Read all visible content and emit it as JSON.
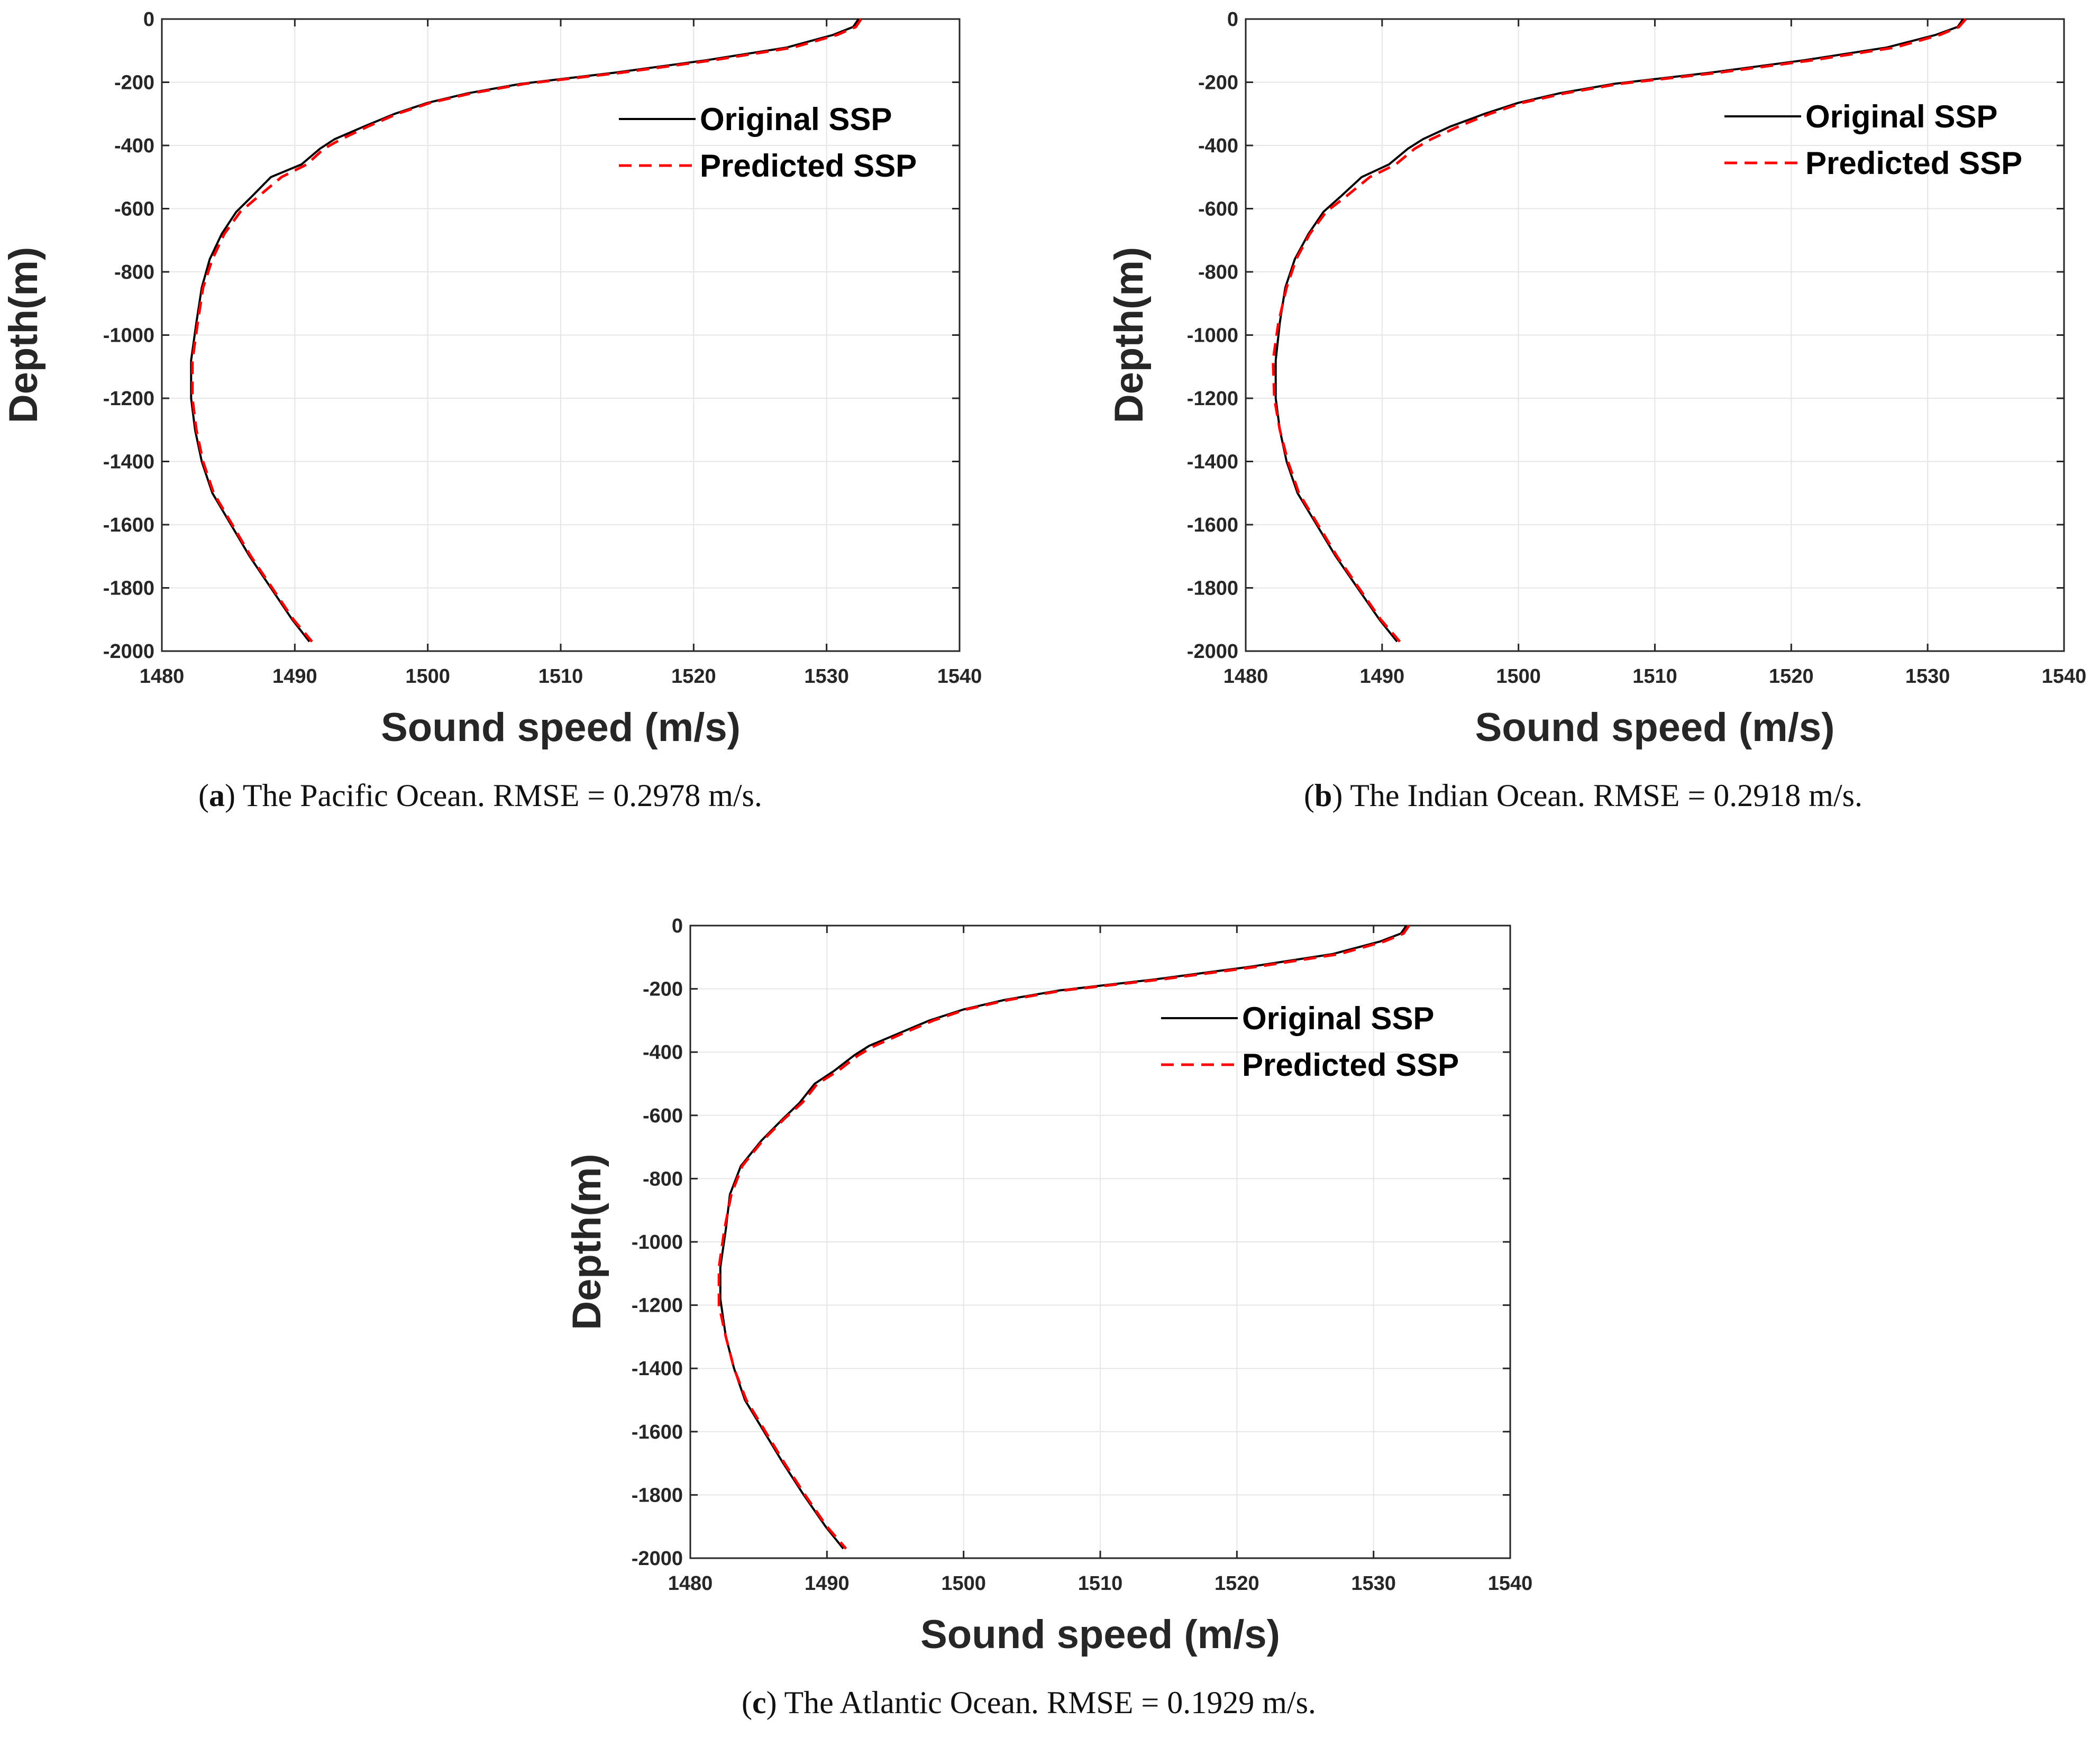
{
  "figure": {
    "captions": [
      {
        "letter": "a",
        "text": "The Pacific Ocean. RMSE = 0.2978 m/s."
      },
      {
        "letter": "b",
        "text": "The Indian Ocean. RMSE = 0.2918 m/s."
      },
      {
        "letter": "c",
        "text": "The Atlantic Ocean. RMSE = 0.1929 m/s."
      }
    ]
  },
  "colors": {
    "original": "#000000",
    "predicted": "#ff0000",
    "grid": "#e6e6e6",
    "axis": "#262626"
  },
  "chart_data": [
    {
      "type": "line",
      "xlabel": "Sound speed (m/s)",
      "ylabel": "Depth(m)",
      "xlim": [
        1480,
        1540
      ],
      "ylim": [
        -2000,
        0
      ],
      "xticks": [
        1480,
        1490,
        1500,
        1510,
        1520,
        1530,
        1540
      ],
      "yticks": [
        0,
        -200,
        -400,
        -600,
        -800,
        -1000,
        -1200,
        -1400,
        -1600,
        -1800,
        -2000
      ],
      "grid": true,
      "legend_position": "top-right",
      "series": [
        {
          "name": "Original SSP",
          "style": "solid",
          "x": [
            1532.4,
            1532.0,
            1530.5,
            1527.0,
            1521.0,
            1514.0,
            1507.0,
            1503.0,
            1500.0,
            1497.5,
            1495.2,
            1493.0,
            1491.9,
            1490.5,
            1488.2,
            1486.8,
            1485.6,
            1484.5,
            1483.6,
            1483.0,
            1482.6,
            1482.2,
            1482.2,
            1482.5,
            1483.0,
            1483.8,
            1485.2,
            1486.6,
            1488.2,
            1489.8,
            1491.1
          ],
          "y": [
            0,
            -25,
            -50,
            -90,
            -130,
            -170,
            -205,
            -235,
            -265,
            -300,
            -340,
            -380,
            -410,
            -460,
            -500,
            -560,
            -610,
            -680,
            -760,
            -850,
            -960,
            -1080,
            -1200,
            -1300,
            -1400,
            -1500,
            -1600,
            -1700,
            -1800,
            -1900,
            -1970
          ]
        },
        {
          "name": "Predicted SSP",
          "style": "dashed",
          "x": [
            1532.6,
            1532.2,
            1530.8,
            1527.5,
            1521.5,
            1514.5,
            1507.3,
            1503.3,
            1500.2,
            1497.7,
            1495.5,
            1493.5,
            1492.2,
            1490.9,
            1489.0,
            1487.3,
            1485.9,
            1484.7,
            1483.8,
            1483.1,
            1482.7,
            1482.3,
            1482.3,
            1482.6,
            1483.1,
            1483.9,
            1485.3,
            1486.7,
            1488.3,
            1489.9,
            1491.3
          ],
          "y": [
            0,
            -25,
            -50,
            -90,
            -130,
            -170,
            -205,
            -235,
            -265,
            -300,
            -340,
            -380,
            -410,
            -460,
            -500,
            -560,
            -610,
            -680,
            -760,
            -850,
            -960,
            -1080,
            -1200,
            -1300,
            -1400,
            -1500,
            -1600,
            -1700,
            -1800,
            -1900,
            -1970
          ]
        }
      ]
    },
    {
      "type": "line",
      "xlabel": "Sound speed (m/s)",
      "ylabel": "Depth(m)",
      "xlim": [
        1480,
        1540
      ],
      "ylim": [
        -2000,
        0
      ],
      "xticks": [
        1480,
        1490,
        1500,
        1510,
        1520,
        1530,
        1540
      ],
      "yticks": [
        0,
        -200,
        -400,
        -600,
        -800,
        -1000,
        -1200,
        -1400,
        -1600,
        -1800,
        -2000
      ],
      "grid": true,
      "legend_position": "top-right",
      "series": [
        {
          "name": "Original SSP",
          "style": "solid",
          "x": [
            1532.6,
            1532.2,
            1530.6,
            1527.0,
            1521.0,
            1514.0,
            1507.0,
            1503.0,
            1500.0,
            1497.5,
            1495.0,
            1493.0,
            1491.9,
            1490.5,
            1488.5,
            1487.0,
            1485.7,
            1484.6,
            1483.6,
            1482.9,
            1482.5,
            1482.2,
            1482.2,
            1482.5,
            1483.0,
            1483.8,
            1485.2,
            1486.6,
            1488.2,
            1489.8,
            1491.1
          ],
          "y": [
            0,
            -25,
            -50,
            -90,
            -130,
            -170,
            -205,
            -235,
            -265,
            -300,
            -340,
            -380,
            -410,
            -460,
            -500,
            -560,
            -610,
            -680,
            -760,
            -850,
            -960,
            -1080,
            -1200,
            -1300,
            -1400,
            -1500,
            -1600,
            -1700,
            -1800,
            -1900,
            -1970
          ]
        },
        {
          "name": "Predicted SSP",
          "style": "dashed",
          "x": [
            1532.8,
            1532.3,
            1530.9,
            1527.6,
            1521.6,
            1514.6,
            1507.4,
            1503.4,
            1500.3,
            1497.9,
            1495.6,
            1493.6,
            1492.4,
            1491.0,
            1489.1,
            1487.4,
            1485.9,
            1484.7,
            1483.7,
            1483.0,
            1482.4,
            1482.0,
            1482.1,
            1482.5,
            1483.1,
            1483.9,
            1485.3,
            1486.7,
            1488.3,
            1489.9,
            1491.3
          ],
          "y": [
            0,
            -25,
            -50,
            -90,
            -130,
            -170,
            -205,
            -235,
            -265,
            -300,
            -340,
            -380,
            -410,
            -460,
            -500,
            -560,
            -610,
            -680,
            -760,
            -850,
            -960,
            -1080,
            -1200,
            -1300,
            -1400,
            -1500,
            -1600,
            -1700,
            -1800,
            -1900,
            -1970
          ]
        }
      ]
    },
    {
      "type": "line",
      "xlabel": "Sound speed (m/s)",
      "ylabel": "Depth(m)",
      "xlim": [
        1480,
        1540
      ],
      "ylim": [
        -2000,
        0
      ],
      "xticks": [
        1480,
        1490,
        1500,
        1510,
        1520,
        1530,
        1540
      ],
      "yticks": [
        0,
        -200,
        -400,
        -600,
        -800,
        -1000,
        -1200,
        -1400,
        -1600,
        -1800,
        -2000
      ],
      "grid": true,
      "legend_position": "top-right",
      "series": [
        {
          "name": "Original SSP",
          "style": "solid",
          "x": [
            1532.4,
            1532.0,
            1530.5,
            1527.0,
            1521.0,
            1514.0,
            1507.0,
            1503.0,
            1500.0,
            1497.5,
            1495.3,
            1493.1,
            1492.0,
            1490.5,
            1489.1,
            1488.0,
            1486.8,
            1485.2,
            1483.7,
            1482.9,
            1482.6,
            1482.2,
            1482.2,
            1482.6,
            1483.2,
            1484.0,
            1485.4,
            1486.8,
            1488.3,
            1489.9,
            1491.2
          ],
          "y": [
            0,
            -25,
            -50,
            -90,
            -130,
            -170,
            -205,
            -235,
            -265,
            -300,
            -340,
            -380,
            -410,
            -460,
            -500,
            -560,
            -610,
            -680,
            -760,
            -850,
            -960,
            -1080,
            -1180,
            -1300,
            -1400,
            -1500,
            -1600,
            -1700,
            -1800,
            -1900,
            -1970
          ]
        },
        {
          "name": "Predicted SSP",
          "style": "dashed",
          "x": [
            1532.6,
            1532.2,
            1530.8,
            1527.5,
            1521.5,
            1514.5,
            1507.3,
            1503.3,
            1500.2,
            1497.8,
            1495.6,
            1493.5,
            1492.3,
            1490.8,
            1489.3,
            1488.2,
            1486.9,
            1485.3,
            1483.8,
            1483.0,
            1482.5,
            1482.1,
            1482.1,
            1482.6,
            1483.2,
            1484.1,
            1485.5,
            1486.9,
            1488.4,
            1490.0,
            1491.4
          ],
          "y": [
            0,
            -25,
            -50,
            -90,
            -130,
            -170,
            -205,
            -235,
            -265,
            -300,
            -340,
            -380,
            -410,
            -460,
            -500,
            -560,
            -610,
            -680,
            -760,
            -850,
            -960,
            -1080,
            -1200,
            -1300,
            -1400,
            -1500,
            -1600,
            -1700,
            -1800,
            -1900,
            -1970
          ]
        }
      ]
    }
  ]
}
